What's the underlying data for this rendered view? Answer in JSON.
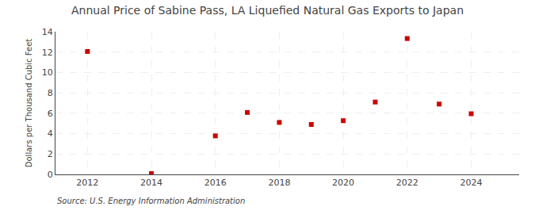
{
  "chart_data": {
    "type": "scatter",
    "title": "Annual Price of Sabine Pass, LA Liquefied Natural Gas Exports to Japan",
    "y_label": "Dollars per Thousand Cubic Feet",
    "annotations": [
      "Source: U.S. Energy Information Administration"
    ],
    "x": [
      2012,
      2014,
      2016,
      2017,
      2018,
      2019,
      2020,
      2021,
      2022,
      2023,
      2024
    ],
    "values": [
      12.06,
      0.08,
      3.78,
      6.08,
      5.1,
      4.9,
      5.27,
      7.1,
      13.33,
      6.9,
      5.95
    ],
    "color": "#cc0000",
    "marker": "square",
    "xlim": [
      2011,
      2025.5
    ],
    "ylim": [
      0,
      14
    ],
    "xticks": [
      2012,
      2014,
      2016,
      2018,
      2020,
      2022,
      2024
    ],
    "yticks": [
      0,
      2,
      4,
      6,
      8,
      10,
      12,
      14
    ],
    "grid": true
  }
}
